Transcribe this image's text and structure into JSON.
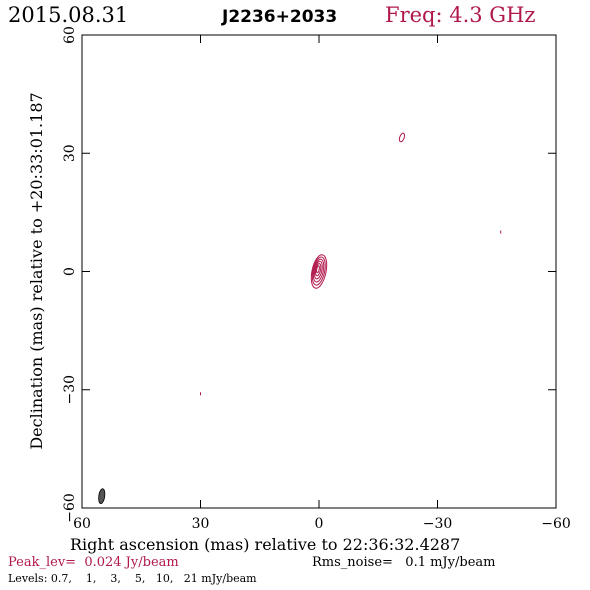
{
  "header": {
    "date": "2015.08.31",
    "source": "J2236+2033",
    "freq": "Freq: 4.3 GHz"
  },
  "chart_data": {
    "type": "contour",
    "xlabel": "Right ascension (mas) relative to 22:36:32.4287",
    "ylabel": "Declination (mas) relative to +20:33:01.187",
    "xlim": [
      60,
      -60
    ],
    "ylim": [
      -60,
      60
    ],
    "x_ticks": [
      60,
      30,
      0,
      -30,
      -60
    ],
    "y_ticks": [
      -60,
      -30,
      0,
      30,
      60
    ],
    "x_tick_labels": [
      "60",
      "30",
      "0",
      "−30",
      "−60"
    ],
    "y_tick_labels": [
      "−60",
      "−30",
      "0",
      "30",
      "60"
    ],
    "contour_color": "#b0184a",
    "beam_color": "#555555",
    "core": {
      "x": 0,
      "y": 0,
      "levels_count": 6
    },
    "features": [
      {
        "x": -21,
        "y": 34
      },
      {
        "x": -46,
        "y": 10
      },
      {
        "x": 30,
        "y": -31
      }
    ],
    "beam": {
      "x": 55,
      "y": -57
    },
    "peak_text": "Peak_lev=  0.024 Jy/beam",
    "rms_text": "Rms_noise=   0.1 mJy/beam",
    "levels_text": "Levels: 0.7,    1,    3,    5,   10,   21 mJy/beam"
  }
}
